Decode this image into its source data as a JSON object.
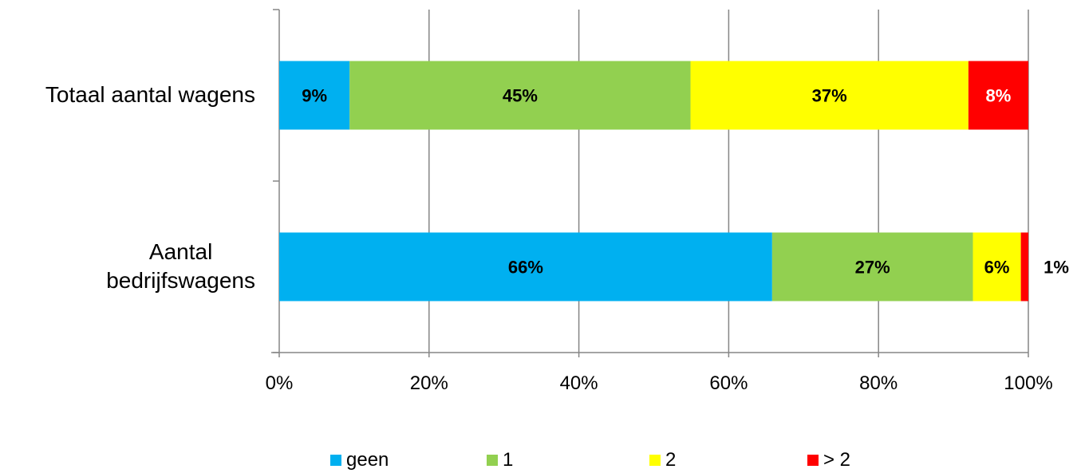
{
  "chart_data": {
    "type": "bar",
    "orientation": "horizontal",
    "stacked": "percent",
    "categories": [
      {
        "label_lines": [
          "Totaal aantal wagens"
        ]
      },
      {
        "label_lines": [
          "Aantal",
          "bedrijfswagens"
        ]
      }
    ],
    "series": [
      {
        "name": "geen",
        "color": "#00B0F0",
        "label_color": "#000000",
        "values": [
          9.4,
          65.8
        ],
        "labels": [
          "9%",
          "66%"
        ]
      },
      {
        "name": "1",
        "color": "#92D050",
        "label_color": "#000000",
        "values": [
          45.5,
          26.8
        ],
        "labels": [
          "45%",
          "27%"
        ]
      },
      {
        "name": "2",
        "color": "#FFFF00",
        "label_color": "#000000",
        "values": [
          37.1,
          6.4
        ],
        "labels": [
          "37%",
          "6%"
        ]
      },
      {
        "name": "> 2",
        "color": "#FF0000",
        "label_color": "#FFFFFF",
        "values": [
          8.0,
          1.0
        ],
        "labels": [
          "8%",
          "1%"
        ]
      }
    ],
    "x_ticks": [
      "0%",
      "20%",
      "40%",
      "60%",
      "80%",
      "100%"
    ],
    "xlim": [
      0,
      100
    ],
    "grid": true,
    "legend_position": "bottom"
  }
}
